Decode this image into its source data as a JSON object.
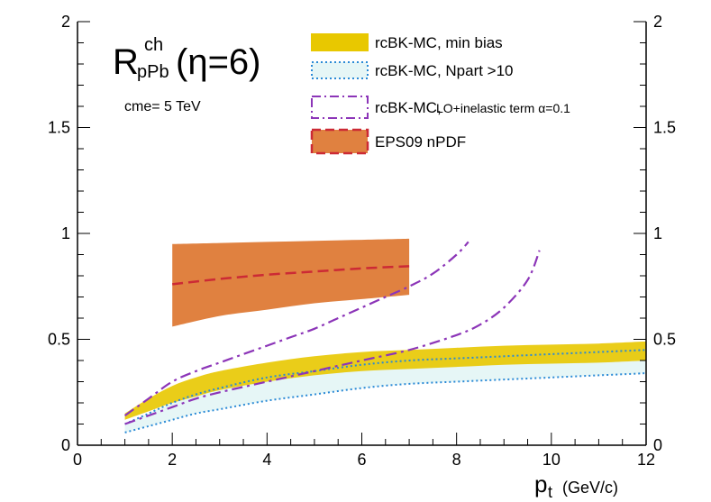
{
  "chart_data": {
    "type": "line",
    "title": {
      "main": "R",
      "superscript": "ch",
      "subscript": "pPb",
      "suffix": "(η=6)"
    },
    "annotation": "cme= 5 TeV",
    "xlabel": {
      "symbol": "p",
      "subscript": "t",
      "units": "(GeV/c)"
    },
    "ylabel": "",
    "xlim": [
      0,
      12
    ],
    "ylim": [
      0,
      2
    ],
    "xticks": [
      0,
      2,
      4,
      6,
      8,
      10,
      12
    ],
    "xtick_labels": [
      "0",
      "2",
      "4",
      "6",
      "8",
      "10",
      "12"
    ],
    "yticks": [
      0,
      0.5,
      1,
      1.5,
      2
    ],
    "ytick_labels": [
      "0",
      "0.5",
      "1",
      "1.5",
      "2"
    ],
    "legend_position": "top-right",
    "series": [
      {
        "name": "rcBK-MC, min bias",
        "legend_label": "rcBK-MC, min bias",
        "kind": "band",
        "color": "#e8c800",
        "x": [
          1,
          1.5,
          2,
          2.5,
          3,
          4,
          5,
          6,
          7,
          8,
          9,
          10,
          11,
          12
        ],
        "upper": [
          0.15,
          0.22,
          0.28,
          0.32,
          0.35,
          0.39,
          0.42,
          0.44,
          0.45,
          0.46,
          0.47,
          0.475,
          0.48,
          0.49
        ],
        "lower": [
          0.12,
          0.16,
          0.2,
          0.23,
          0.26,
          0.3,
          0.33,
          0.35,
          0.36,
          0.37,
          0.38,
          0.385,
          0.39,
          0.4
        ]
      },
      {
        "name": "rcBK-MC, Npart >10",
        "legend_label": "rcBK-MC, Npart >10",
        "kind": "band-dotted",
        "color": "#2a8ad6",
        "fill": "#e6f6f6",
        "x": [
          1,
          1.5,
          2,
          2.5,
          3,
          4,
          5,
          6,
          7,
          8,
          9,
          10,
          11,
          12
        ],
        "upper": [
          0.1,
          0.15,
          0.2,
          0.24,
          0.27,
          0.32,
          0.35,
          0.38,
          0.4,
          0.41,
          0.42,
          0.43,
          0.44,
          0.45
        ],
        "lower": [
          0.06,
          0.09,
          0.12,
          0.15,
          0.17,
          0.21,
          0.24,
          0.27,
          0.29,
          0.3,
          0.31,
          0.32,
          0.33,
          0.34
        ]
      },
      {
        "name": "rcBK-MC, LO+inelastic term α=0.1",
        "legend_label_main": "rcBK-MC,",
        "legend_label_small": "LO+inelastic term α=0.1",
        "kind": "lines-dashdot",
        "color": "#8c35b8",
        "curves": [
          {
            "x": [
              1,
              1.5,
              2,
              2.5,
              3,
              3.5,
              4,
              4.5,
              5,
              5.5,
              6,
              6.5,
              7,
              7.5,
              8,
              8.25
            ],
            "y": [
              0.14,
              0.22,
              0.3,
              0.35,
              0.39,
              0.43,
              0.47,
              0.51,
              0.55,
              0.6,
              0.65,
              0.7,
              0.75,
              0.81,
              0.9,
              0.96
            ]
          },
          {
            "x": [
              1,
              1.5,
              2,
              2.5,
              3,
              4,
              5,
              6,
              7,
              8,
              8.5,
              9,
              9.5,
              9.75
            ],
            "y": [
              0.1,
              0.14,
              0.18,
              0.22,
              0.25,
              0.3,
              0.35,
              0.4,
              0.45,
              0.52,
              0.57,
              0.65,
              0.78,
              0.92
            ]
          }
        ]
      },
      {
        "name": "EPS09 nPDF",
        "legend_label": "EPS09 nPDF",
        "kind": "band-dashed",
        "fill": "#e08140",
        "color": "#cc2a35",
        "x": [
          2,
          3,
          4,
          5,
          6,
          7
        ],
        "upper": [
          0.95,
          0.955,
          0.96,
          0.965,
          0.97,
          0.975
        ],
        "central": [
          0.76,
          0.785,
          0.805,
          0.82,
          0.835,
          0.845
        ],
        "lower": [
          0.56,
          0.61,
          0.64,
          0.67,
          0.69,
          0.71
        ]
      }
    ]
  }
}
